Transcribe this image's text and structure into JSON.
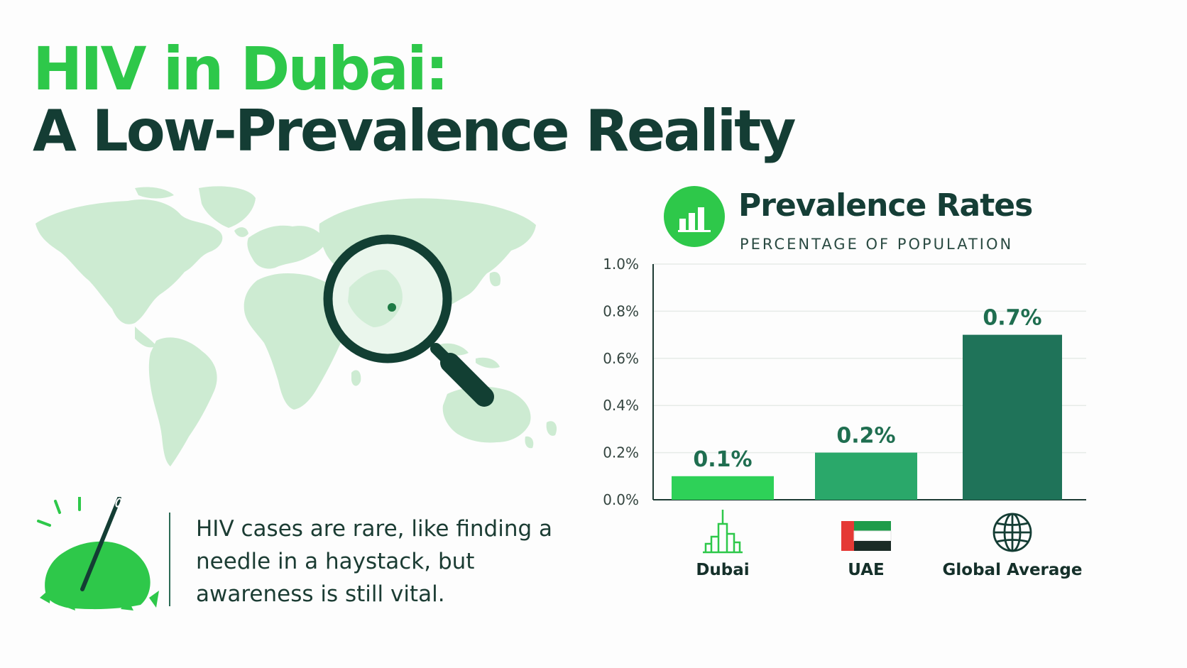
{
  "header": {
    "title_line1": "HIV in Dubai:",
    "title_line2": "A Low-Prevalence Reality"
  },
  "caption": {
    "text": "HIV cases are rare, like finding a needle in a haystack, but awareness is still vital."
  },
  "icons": {
    "world_map": "world-map-icon",
    "magnifier": "magnifying-glass-icon",
    "haystack": "needle-haystack-icon",
    "chart": "bar-chart-icon",
    "dubai": "skyscraper-icon",
    "uae": "uae-flag-icon",
    "global": "globe-icon"
  },
  "colors": {
    "title_green": "#2ec84a",
    "dark_green": "#143d34",
    "map_green": "#cdebd2",
    "bar_dubai": "#2ed158",
    "bar_uae": "#2aa86a",
    "bar_global": "#1f7359",
    "value_label": "#1f6e50"
  },
  "chart_data": {
    "type": "bar",
    "title": "Prevalence Rates",
    "subtitle": "PERCENTAGE OF POPULATION",
    "categories": [
      "Dubai",
      "UAE",
      "Global Average"
    ],
    "values": [
      0.1,
      0.2,
      0.7
    ],
    "value_labels": [
      "0.1%",
      "0.2%",
      "0.7%"
    ],
    "ylim": [
      0,
      1.0
    ],
    "yticks": [
      0.0,
      0.2,
      0.4,
      0.6,
      0.8,
      1.0
    ],
    "ytick_labels": [
      "0.0%",
      "0.2%",
      "0.4%",
      "0.6%",
      "0.8%",
      "1.0%"
    ],
    "grid": true,
    "xlabel": "",
    "ylabel": ""
  }
}
